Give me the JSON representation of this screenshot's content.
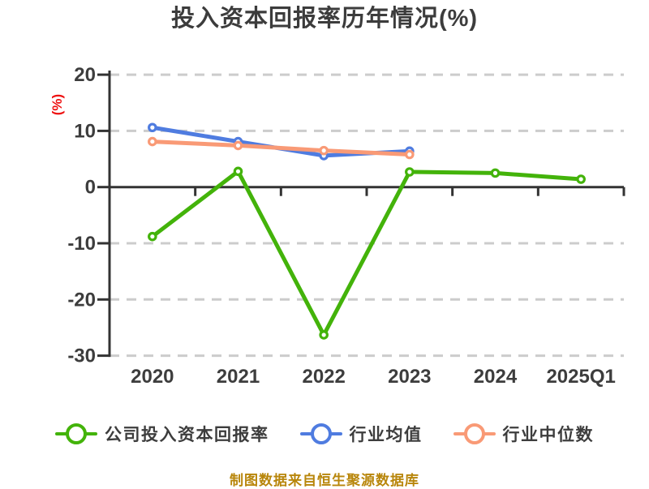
{
  "title": "投入资本回报率历年情况(%)",
  "footer": "制图数据来自恒生聚源数据库",
  "chart_data": {
    "type": "line",
    "title": "投入资本回报率历年情况(%)",
    "xlabel": "",
    "ylabel": "(%)",
    "categories": [
      "2020",
      "2021",
      "2022",
      "2023",
      "2024",
      "2025Q1"
    ],
    "series": [
      {
        "name": "公司投入资本回报率",
        "color": "#43b30a",
        "values": [
          -8.8,
          2.8,
          -26.3,
          2.7,
          2.5,
          1.4
        ]
      },
      {
        "name": "行业均值",
        "color": "#4f7ce0",
        "values": [
          10.6,
          8.1,
          5.6,
          6.4,
          null,
          null
        ]
      },
      {
        "name": "行业中位数",
        "color": "#f99a76",
        "values": [
          8.1,
          7.4,
          6.5,
          5.8,
          null,
          null
        ]
      }
    ],
    "ylim": [
      -30,
      20
    ],
    "yticks": [
      20,
      10,
      0,
      -10,
      -20,
      -30
    ],
    "grid": "dashed-horizontal",
    "legend_position": "bottom",
    "axis_color": "#333333",
    "grid_color": "#cccccc",
    "label_color": "#3d3d3d",
    "ylabel_color": "#ee1111",
    "footer_color": "#b8860b"
  }
}
